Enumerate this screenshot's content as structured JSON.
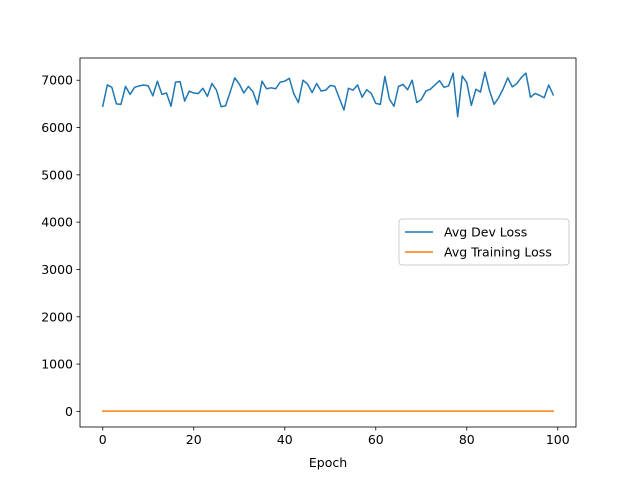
{
  "chart_data": {
    "type": "line",
    "title": "",
    "xlabel": "Epoch",
    "ylabel": "",
    "xlim": [
      -5,
      104
    ],
    "ylim": [
      -330,
      7470
    ],
    "xticks": [
      0,
      20,
      40,
      60,
      80,
      100
    ],
    "yticks": [
      0,
      1000,
      2000,
      3000,
      4000,
      5000,
      6000,
      7000
    ],
    "grid": false,
    "legend": {
      "placement": "center-right"
    },
    "series": [
      {
        "name": "Avg Dev Loss",
        "color": "#1f77b4",
        "x": [
          0,
          1,
          2,
          3,
          4,
          5,
          6,
          7,
          8,
          9,
          10,
          11,
          12,
          13,
          14,
          15,
          16,
          17,
          18,
          19,
          20,
          21,
          22,
          23,
          24,
          25,
          26,
          27,
          28,
          29,
          30,
          31,
          32,
          33,
          34,
          35,
          36,
          37,
          38,
          39,
          40,
          41,
          42,
          43,
          44,
          45,
          46,
          47,
          48,
          49,
          50,
          51,
          52,
          53,
          54,
          55,
          56,
          57,
          58,
          59,
          60,
          61,
          62,
          63,
          64,
          65,
          66,
          67,
          68,
          69,
          70,
          71,
          72,
          73,
          74,
          75,
          76,
          77,
          78,
          79,
          80,
          81,
          82,
          83,
          84,
          85,
          86,
          87,
          88,
          89,
          90,
          91,
          92,
          93,
          94,
          95,
          96,
          97,
          98,
          99
        ],
        "values": [
          6450,
          6900,
          6850,
          6500,
          6490,
          6870,
          6700,
          6850,
          6880,
          6900,
          6880,
          6670,
          6980,
          6700,
          6730,
          6450,
          6960,
          6970,
          6560,
          6770,
          6730,
          6720,
          6830,
          6660,
          6930,
          6790,
          6440,
          6460,
          6750,
          7050,
          6920,
          6730,
          6870,
          6760,
          6490,
          6980,
          6820,
          6840,
          6820,
          6960,
          6980,
          7040,
          6710,
          6530,
          7000,
          6920,
          6740,
          6930,
          6770,
          6790,
          6890,
          6870,
          6620,
          6370,
          6830,
          6790,
          6900,
          6640,
          6800,
          6720,
          6510,
          6490,
          7080,
          6600,
          6450,
          6870,
          6910,
          6800,
          7000,
          6530,
          6590,
          6770,
          6810,
          6900,
          6990,
          6850,
          6880,
          7150,
          6230,
          7090,
          6950,
          6470,
          6810,
          6750,
          7170,
          6780,
          6490,
          6630,
          6820,
          7050,
          6860,
          6930,
          7060,
          7150,
          6640,
          6720,
          6680,
          6630,
          6900,
          6690
        ]
      },
      {
        "name": "Avg Training Loss",
        "color": "#ff7f0e",
        "x": [
          0,
          99
        ],
        "values": [
          5,
          5
        ]
      }
    ]
  }
}
